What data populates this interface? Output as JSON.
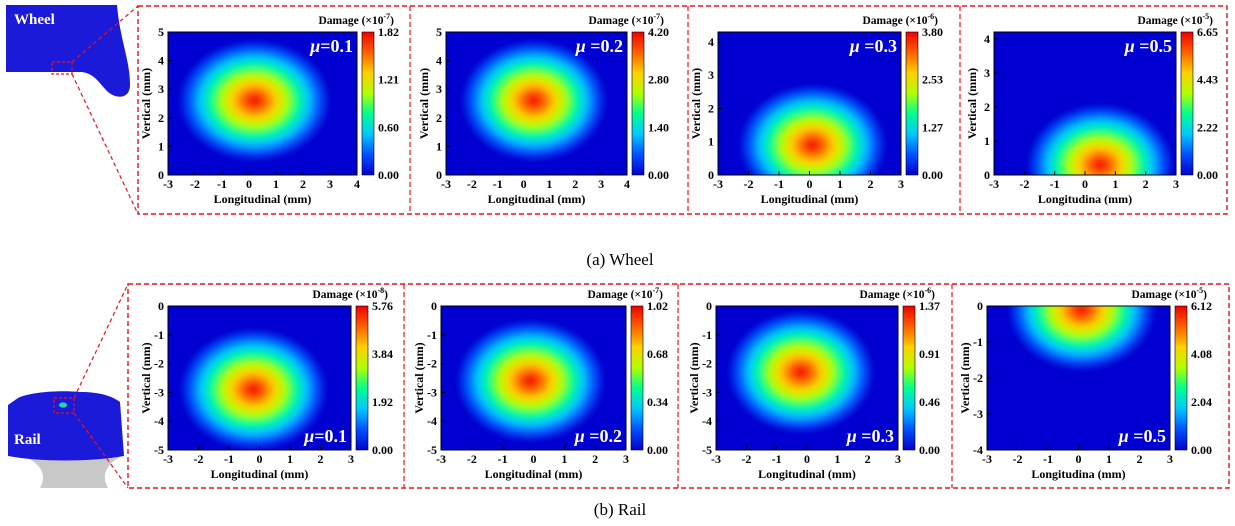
{
  "figure": {
    "wheel_caption": "(a) Wheel",
    "rail_caption": "(b) Rail",
    "wheel_schematic_label": "Wheel",
    "rail_schematic_label": "Rail"
  },
  "colors": {
    "frame_dash": "#e8141b",
    "profile_fill": "#1a1ad8",
    "rail_web": "#c8c8c8"
  },
  "colormap": [
    "#0000d0",
    "#0050ff",
    "#00c8ff",
    "#00ff90",
    "#b0ff00",
    "#ffd000",
    "#ff6000",
    "#ee0000"
  ],
  "chart_data": [
    {
      "type": "heatmap",
      "row": "wheel",
      "title": "Damage (×10⁻⁷)",
      "title_base": "Damage (×10",
      "title_exp": "-7",
      "title_close": ")",
      "label": "μ=0.1",
      "label_sym": "μ",
      "label_rest": "=0.1",
      "xlabel": "Longitudinal (mm)",
      "ylabel": "Vertical (mm)",
      "xlim": [
        -3,
        4
      ],
      "ylim": [
        0,
        5
      ],
      "xticks": [
        "-3",
        "-2",
        "-1",
        "0",
        "1",
        "2",
        "3",
        "4"
      ],
      "yticks": [
        "0",
        "1",
        "2",
        "3",
        "4",
        "5"
      ],
      "colorbar": [
        "1.82",
        "1.21",
        "0.60",
        "0.00"
      ],
      "peak": {
        "x": 0.2,
        "y": 2.6
      }
    },
    {
      "type": "heatmap",
      "row": "wheel",
      "title": "Damage (×10⁻⁷)",
      "title_base": "Damage (×10",
      "title_exp": "-7",
      "title_close": ")",
      "label": "μ =0.2",
      "label_sym": "μ",
      "label_rest": " =0.2",
      "xlabel": "Longitudinal (mm)",
      "ylabel": "Vertical (mm)",
      "xlim": [
        -3,
        4
      ],
      "ylim": [
        0,
        5
      ],
      "xticks": [
        "-3",
        "-2",
        "-1",
        "0",
        "1",
        "2",
        "3",
        "4"
      ],
      "yticks": [
        "0",
        "1",
        "2",
        "3",
        "4",
        "5"
      ],
      "colorbar": [
        "4.20",
        "2.80",
        "1.40",
        "0.00"
      ],
      "peak": {
        "x": 0.4,
        "y": 2.6
      }
    },
    {
      "type": "heatmap",
      "row": "wheel",
      "title": "Damage (×10⁻⁶)",
      "title_base": "Damage (×10",
      "title_exp": "-6",
      "title_close": ")",
      "label": "μ =0.3",
      "label_sym": "μ",
      "label_rest": " =0.3",
      "xlabel": "Longitudinal (mm)",
      "ylabel": "Vertical (mm)",
      "xlim": [
        -3,
        3
      ],
      "ylim": [
        0,
        4.3
      ],
      "xticks": [
        "-3",
        "-2",
        "-1",
        "0",
        "1",
        "2",
        "3"
      ],
      "yticks": [
        "0",
        "1",
        "2",
        "3",
        "4"
      ],
      "colorbar": [
        "3.80",
        "2.53",
        "1.27",
        "0.00"
      ],
      "peak": {
        "x": 0.1,
        "y": 0.9
      }
    },
    {
      "type": "heatmap",
      "row": "wheel",
      "title": "Damage (×10⁻⁵)",
      "title_base": "Damage (×10",
      "title_exp": "-5",
      "title_close": ")",
      "label": "μ =0.5",
      "label_sym": "μ",
      "label_rest": " =0.5",
      "xlabel": "Longitudina (mm)",
      "ylabel": "Vertical (mm)",
      "xlim": [
        -3,
        3
      ],
      "ylim": [
        0,
        4.2
      ],
      "xticks": [
        "-3",
        "-2",
        "-1",
        "0",
        "1",
        "2",
        "3"
      ],
      "yticks": [
        "0",
        "1",
        "2",
        "3",
        "4"
      ],
      "colorbar": [
        "6.65",
        "4.43",
        "2.22",
        "0.00"
      ],
      "peak": {
        "x": 0.5,
        "y": 0.3
      }
    },
    {
      "type": "heatmap",
      "row": "rail",
      "title": "Damage (×10⁻⁸)",
      "title_base": "Damage (×10",
      "title_exp": "-8",
      "title_close": ")",
      "label": "μ=0.1",
      "label_sym": "μ",
      "label_rest": "=0.1",
      "xlabel": "Longitudinal (mm)",
      "ylabel": "Vertical (mm)",
      "xlim": [
        -3,
        3
      ],
      "ylim": [
        -5,
        0
      ],
      "xticks": [
        "-3",
        "-2",
        "-1",
        "0",
        "1",
        "2",
        "3"
      ],
      "yticks": [
        "-5",
        "-4",
        "-3",
        "-2",
        "-1",
        "0"
      ],
      "colorbar": [
        "5.76",
        "3.84",
        "1.92",
        "0.00"
      ],
      "peak": {
        "x": -0.2,
        "y": -2.9
      }
    },
    {
      "type": "heatmap",
      "row": "rail",
      "title": "Damage (×10⁻⁷)",
      "title_base": "Damage (×10",
      "title_exp": "-7",
      "title_close": ")",
      "label": "μ =0.2",
      "label_sym": "μ",
      "label_rest": " =0.2",
      "xlabel": "Longitudinal (mm)",
      "ylabel": "Vertical (mm)",
      "xlim": [
        -3,
        3
      ],
      "ylim": [
        -5,
        0
      ],
      "xticks": [
        "-3",
        "-2",
        "-1",
        "0",
        "1",
        "2",
        "3"
      ],
      "yticks": [
        "-5",
        "-4",
        "-3",
        "-2",
        "-1",
        "0"
      ],
      "colorbar": [
        "1.02",
        "0.68",
        "0.34",
        "0.00"
      ],
      "peak": {
        "x": -0.1,
        "y": -2.6
      }
    },
    {
      "type": "heatmap",
      "row": "rail",
      "title": "Damage (×10⁻⁶)",
      "title_base": "Damage (×10",
      "title_exp": "-6",
      "title_close": ")",
      "label": "μ =0.3",
      "label_sym": "μ",
      "label_rest": " =0.3",
      "xlabel": "Longitudinal (mm)",
      "ylabel": "Vertical (mm)",
      "xlim": [
        -3,
        3
      ],
      "ylim": [
        -5,
        0
      ],
      "xticks": [
        "-3",
        "-2",
        "-1",
        "0",
        "1",
        "2",
        "3"
      ],
      "yticks": [
        "-5",
        "-4",
        "-3",
        "-2",
        "-1",
        "0"
      ],
      "colorbar": [
        "1.37",
        "0.91",
        "0.46",
        "0.00"
      ],
      "peak": {
        "x": -0.2,
        "y": -2.3
      }
    },
    {
      "type": "heatmap",
      "row": "rail",
      "title": "Damage (×10⁻⁵)",
      "title_base": "Damage (×10",
      "title_exp": "-5",
      "title_close": ")",
      "label": "μ =0.5",
      "label_sym": "μ",
      "label_rest": " =0.5",
      "xlabel": "Longitudina (mm)",
      "ylabel": "Vertical (mm)",
      "xlim": [
        -3,
        3
      ],
      "ylim": [
        -4,
        0
      ],
      "xticks": [
        "-3",
        "-2",
        "-1",
        "0",
        "1",
        "2",
        "3"
      ],
      "yticks": [
        "-4",
        "-3",
        "-2",
        "-1",
        "0"
      ],
      "colorbar": [
        "6.12",
        "4.08",
        "2.04",
        "0.00"
      ],
      "peak": {
        "x": 0.1,
        "y": -0.1
      }
    }
  ]
}
